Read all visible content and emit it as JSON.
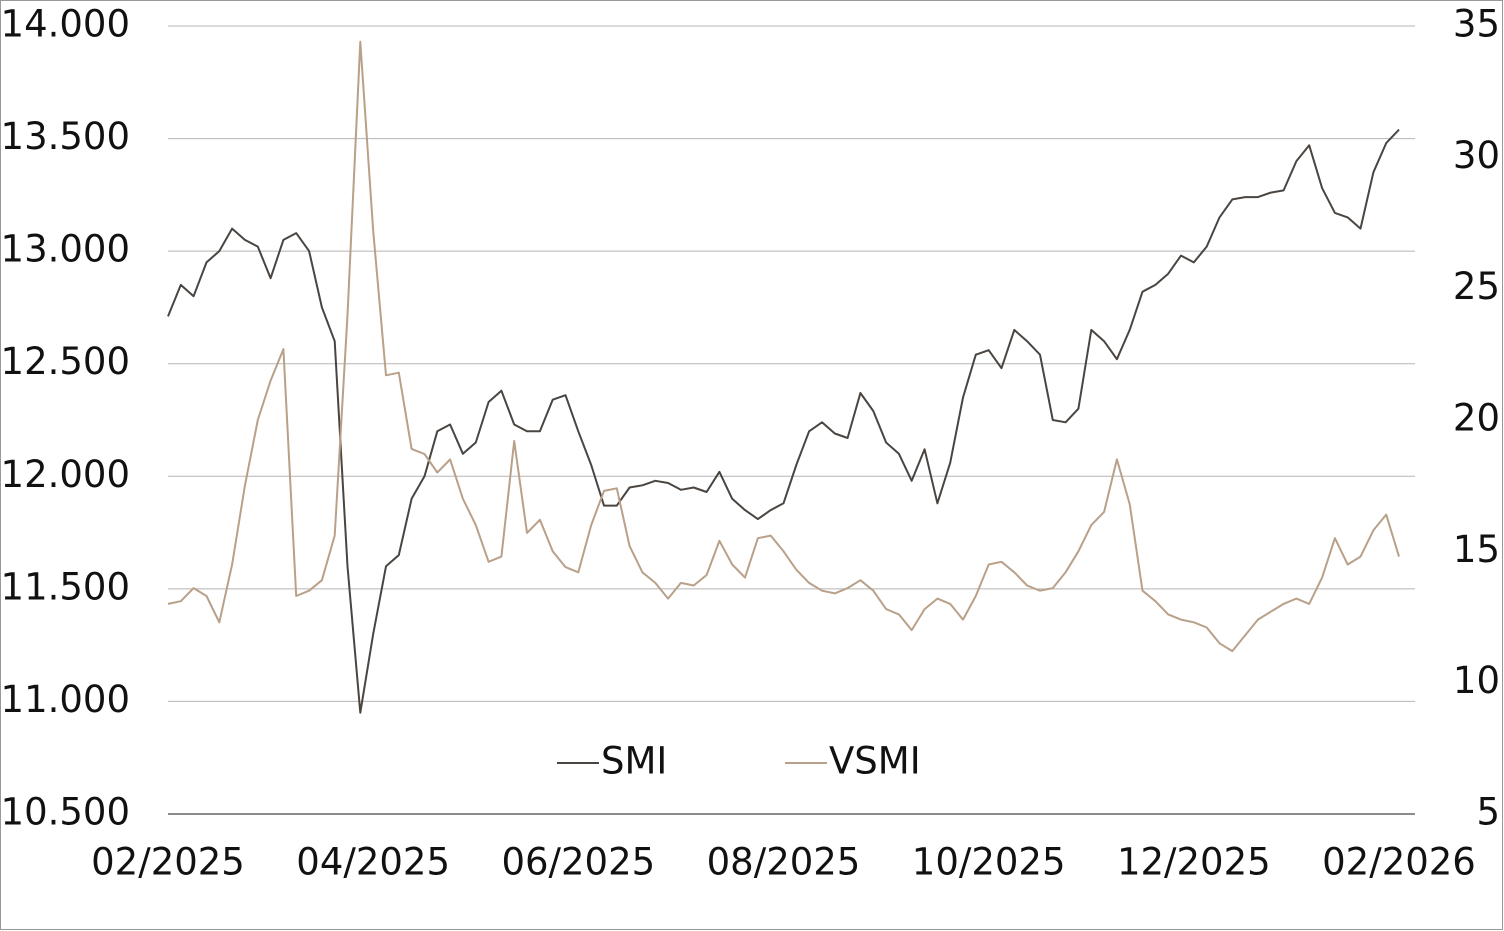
{
  "chart_data": {
    "type": "line",
    "categories": [
      "02/2025",
      null,
      null,
      null,
      null,
      null,
      null,
      null,
      null,
      null,
      null,
      null,
      null,
      null,
      null,
      null,
      "04/2025",
      null,
      null,
      null,
      null,
      null,
      null,
      null,
      null,
      null,
      null,
      null,
      null,
      null,
      null,
      null,
      "06/2025",
      null,
      null,
      null,
      null,
      null,
      null,
      null,
      null,
      null,
      null,
      null,
      null,
      null,
      null,
      null,
      "08/2025",
      null,
      null,
      null,
      null,
      null,
      null,
      null,
      null,
      null,
      null,
      null,
      null,
      null,
      null,
      null,
      "10/2025",
      null,
      null,
      null,
      null,
      null,
      null,
      null,
      null,
      null,
      null,
      null,
      null,
      null,
      null,
      null,
      "12/2025",
      null,
      null,
      null,
      null,
      null,
      null,
      null,
      null,
      null,
      null,
      null,
      null,
      null,
      null,
      null,
      "02/2026"
    ],
    "series": [
      {
        "name": "SMI",
        "color": "#4a4540",
        "values": [
          12710,
          12850,
          12800,
          12950,
          13000,
          13100,
          13050,
          13020,
          12880,
          13050,
          13080,
          13000,
          12750,
          12600,
          11600,
          10950,
          11300,
          11600,
          11650,
          11900,
          12000,
          12200,
          12230,
          12100,
          12150,
          12330,
          12380,
          12230,
          12200,
          12200,
          12340,
          12360,
          12200,
          12050,
          11870,
          11870,
          11950,
          11960,
          11980,
          11970,
          11940,
          11950,
          11930,
          12020,
          11900,
          11850,
          11810,
          11850,
          11880,
          12050,
          12200,
          12240,
          12190,
          12170,
          12370,
          12290,
          12150,
          12100,
          11980,
          12120,
          11880,
          12060,
          12350,
          12540,
          12560,
          12480,
          12650,
          12600,
          12540,
          12250,
          12240,
          12300,
          12650,
          12600,
          12520,
          12650,
          12820,
          12850,
          12900,
          12980,
          12950,
          13020,
          13150,
          13230,
          13240,
          13240,
          13260,
          13270,
          13400,
          13470,
          13280,
          13170,
          13150,
          13100,
          13350,
          13480,
          13540
        ]
      },
      {
        "name": "VSMI",
        "color": "#b9a089",
        "axis": "y2",
        "values": [
          13.0,
          13.1,
          13.6,
          13.3,
          12.3,
          14.5,
          17.5,
          20.0,
          21.5,
          22.7,
          13.3,
          13.5,
          13.9,
          15.6,
          24.0,
          34.4,
          27.2,
          21.7,
          21.8,
          18.9,
          18.7,
          18.0,
          18.5,
          17.0,
          16.0,
          14.6,
          14.8,
          19.2,
          15.7,
          16.2,
          15.0,
          14.4,
          14.2,
          16.0,
          17.3,
          17.4,
          15.2,
          14.2,
          13.8,
          13.2,
          13.8,
          13.7,
          14.1,
          15.4,
          14.5,
          14.0,
          15.5,
          15.6,
          15.0,
          14.3,
          13.8,
          13.5,
          13.4,
          13.6,
          13.9,
          13.5,
          12.8,
          12.6,
          12.0,
          12.8,
          13.2,
          13.0,
          12.4,
          13.3,
          14.5,
          14.6,
          14.2,
          13.7,
          13.5,
          13.6,
          14.2,
          15.0,
          16.0,
          16.5,
          18.5,
          16.8,
          13.5,
          13.1,
          12.6,
          12.4,
          12.3,
          12.1,
          11.5,
          11.2,
          11.8,
          12.4,
          12.7,
          13.0,
          13.2,
          13.0,
          14.0,
          15.5,
          14.5,
          14.8,
          15.8,
          16.4,
          14.8
        ]
      }
    ],
    "ylim": [
      10500,
      14000
    ],
    "yticks": [
      {
        "value": 10500,
        "label": "10.500"
      },
      {
        "value": 11000,
        "label": "11.000"
      },
      {
        "value": 11500,
        "label": "11.500"
      },
      {
        "value": 12000,
        "label": "12.000"
      },
      {
        "value": 12500,
        "label": "12.500"
      },
      {
        "value": 13000,
        "label": "13.000"
      },
      {
        "value": 13500,
        "label": "13.500"
      },
      {
        "value": 14000,
        "label": "14.000"
      }
    ],
    "y2lim": [
      5,
      35
    ],
    "y2ticks": [
      5,
      10,
      15,
      20,
      25,
      30,
      35
    ],
    "grid": true,
    "legend": "bottom"
  }
}
